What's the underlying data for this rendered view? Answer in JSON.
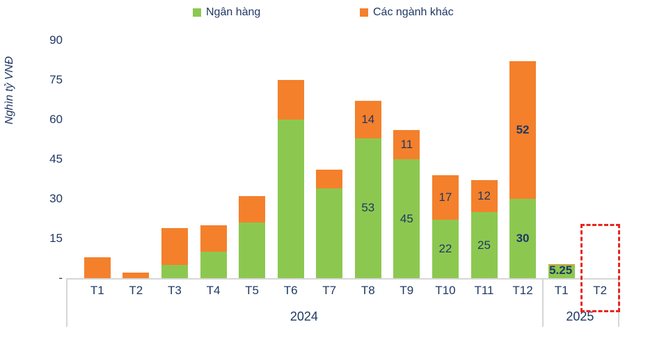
{
  "legend": {
    "items": [
      {
        "label": "Ngân hàng",
        "color": "#8CC850"
      },
      {
        "label": "Các ngành khác",
        "color": "#F4802C"
      }
    ]
  },
  "y_axis": {
    "title": "Nghìn tỷ VNĐ",
    "ticks": [
      {
        "value": 90,
        "label": "90"
      },
      {
        "value": 75,
        "label": "75"
      },
      {
        "value": 60,
        "label": "60"
      },
      {
        "value": 45,
        "label": "45"
      },
      {
        "value": 30,
        "label": "30"
      },
      {
        "value": 15,
        "label": "15"
      },
      {
        "value": 0,
        "label": "-"
      }
    ]
  },
  "chart_data": {
    "type": "bar",
    "stacked": true,
    "title": "",
    "ylabel": "Nghìn tỷ VNĐ",
    "ylim": [
      0,
      90
    ],
    "grid": false,
    "legend_position": "top",
    "categories": [
      "T1",
      "T2",
      "T3",
      "T4",
      "T5",
      "T6",
      "T7",
      "T8",
      "T9",
      "T10",
      "T11",
      "T12",
      "T1",
      "T2"
    ],
    "category_groups": [
      {
        "label": "2024",
        "count": 12
      },
      {
        "label": "2025",
        "count": 2
      }
    ],
    "series": [
      {
        "name": "Ngân hàng",
        "color": "#8CC850",
        "values": [
          0,
          0,
          5,
          10,
          21,
          60,
          34,
          53,
          45,
          22,
          25,
          30,
          5,
          null
        ]
      },
      {
        "name": "Các ngành khác",
        "color": "#F4802C",
        "values": [
          8,
          2,
          14,
          10,
          10,
          15,
          7,
          14,
          11,
          17,
          12,
          52,
          0.25,
          null
        ]
      }
    ],
    "bar_labels": [
      {
        "category_index": 7,
        "series_index": 0,
        "text": "53",
        "bold": false
      },
      {
        "category_index": 7,
        "series_index": 1,
        "text": "14",
        "bold": false
      },
      {
        "category_index": 8,
        "series_index": 0,
        "text": "45",
        "bold": false
      },
      {
        "category_index": 8,
        "series_index": 1,
        "text": "11",
        "bold": false
      },
      {
        "category_index": 9,
        "series_index": 0,
        "text": "22",
        "bold": false
      },
      {
        "category_index": 9,
        "series_index": 1,
        "text": "17",
        "bold": false
      },
      {
        "category_index": 10,
        "series_index": 0,
        "text": "25",
        "bold": false
      },
      {
        "category_index": 10,
        "series_index": 1,
        "text": "12",
        "bold": false
      },
      {
        "category_index": 11,
        "series_index": 0,
        "text": "30",
        "bold": true
      },
      {
        "category_index": 11,
        "series_index": 1,
        "text": "52",
        "bold": true
      }
    ],
    "total_labels": [
      {
        "category_index": 12,
        "text": "5.25",
        "bold": true
      }
    ],
    "placeholder": {
      "category_index": 13,
      "approx_value_top": 20.5,
      "style": "red-dashed-outline"
    }
  },
  "colors": {
    "bank_green": "#8CC850",
    "other_orange": "#F4802C",
    "text_navy": "#1F3864",
    "axis_gray": "#D6D6D6",
    "placeholder_red": "#E8251F"
  }
}
